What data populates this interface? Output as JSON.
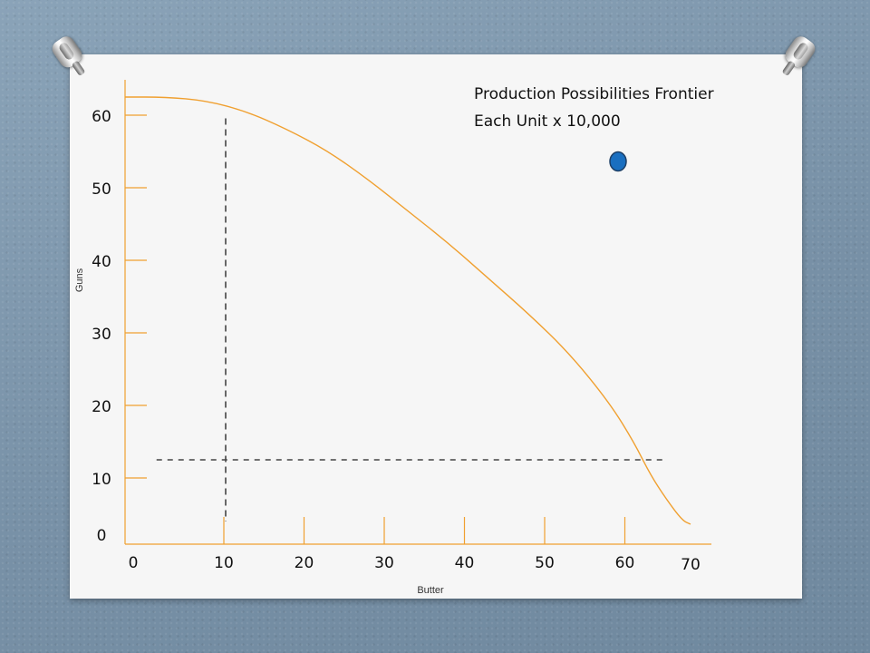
{
  "slide": {
    "title_line1": "Production Possibilities Frontier",
    "title_line2": "Each Unit x 10,000"
  },
  "colors": {
    "curve": "#f0a030",
    "axis": "#f0a030",
    "point_fill": "#1a6fc0",
    "point_stroke": "#1d3f66",
    "dashed": "#444444"
  },
  "chart_data": {
    "type": "line",
    "title": "Production Possibilities Frontier",
    "subtitle": "Each Unit x 10,000",
    "xlabel": "Butter",
    "ylabel": "Guns",
    "xlim": [
      0,
      70
    ],
    "ylim": [
      0,
      60
    ],
    "x_ticks": [
      "0",
      "10",
      "20",
      "30",
      "40",
      "50",
      "60",
      "70"
    ],
    "y_ticks": [
      "0",
      "10",
      "20",
      "30",
      "40",
      "50",
      "60"
    ],
    "grid": false,
    "series": [
      {
        "x": [
          0,
          5,
          10,
          15,
          20,
          25,
          30,
          35,
          40,
          45,
          50,
          55,
          60,
          63,
          65,
          67,
          69,
          70
        ],
        "y": [
          60,
          60,
          59.5,
          58,
          55.5,
          52.5,
          48.5,
          44,
          39.5,
          34.5,
          29.5,
          24,
          17,
          11.5,
          7,
          3.5,
          0.5,
          0
        ]
      }
    ],
    "reference_lines": [
      {
        "orientation": "vertical",
        "x": 10,
        "from_y": 0,
        "to_y": 57,
        "style": "dashed"
      },
      {
        "orientation": "horizontal",
        "y": 10,
        "from_x": 3,
        "to_x": 66,
        "style": "dashed"
      }
    ],
    "points": [
      {
        "x": 61,
        "y": 52
      }
    ]
  }
}
